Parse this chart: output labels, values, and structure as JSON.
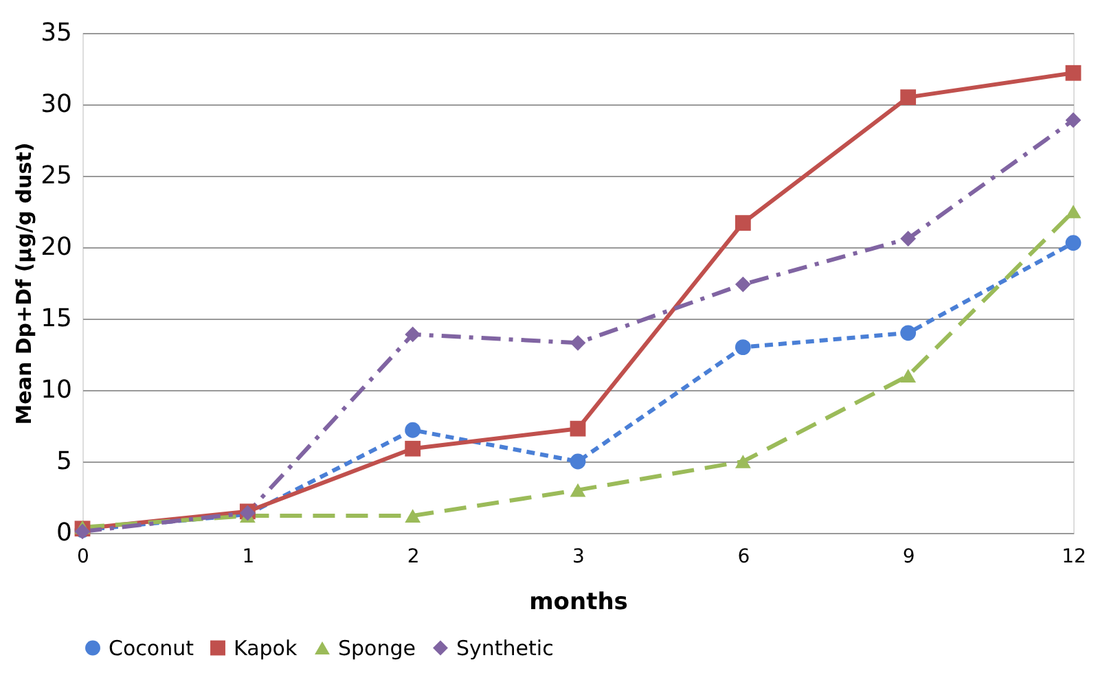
{
  "chart_data": {
    "type": "line",
    "xlabel": "months",
    "ylabel": "Mean Dp+Df (µg/g dust)",
    "categories": [
      "0",
      "1",
      "2",
      "3",
      "6",
      "9",
      "12"
    ],
    "series": [
      {
        "name": "Coconut",
        "color": "#4a7fd6",
        "marker": "circle",
        "line_style": "dashed",
        "values": [
          0.2,
          1.3,
          7.2,
          5.0,
          13.0,
          14.0,
          20.3
        ]
      },
      {
        "name": "Kapok",
        "color": "#c0504d",
        "marker": "square",
        "line_style": "solid",
        "values": [
          0.3,
          1.5,
          5.9,
          7.3,
          21.7,
          30.5,
          32.2
        ]
      },
      {
        "name": "Sponge",
        "color": "#9bbb59",
        "marker": "triangle",
        "line_style": "dashed",
        "values": [
          0.4,
          1.2,
          1.2,
          3.0,
          5.0,
          11.0,
          22.5
        ]
      },
      {
        "name": "Synthetic",
        "color": "#8064a2",
        "marker": "diamond",
        "line_style": "dashdot",
        "values": [
          0.1,
          1.4,
          13.9,
          13.3,
          17.4,
          20.6,
          28.9
        ]
      }
    ],
    "ylim": [
      0,
      35
    ],
    "yticks": [
      0,
      5,
      10,
      15,
      20,
      25,
      30,
      35
    ],
    "grid": "y",
    "legend": "bottom"
  }
}
